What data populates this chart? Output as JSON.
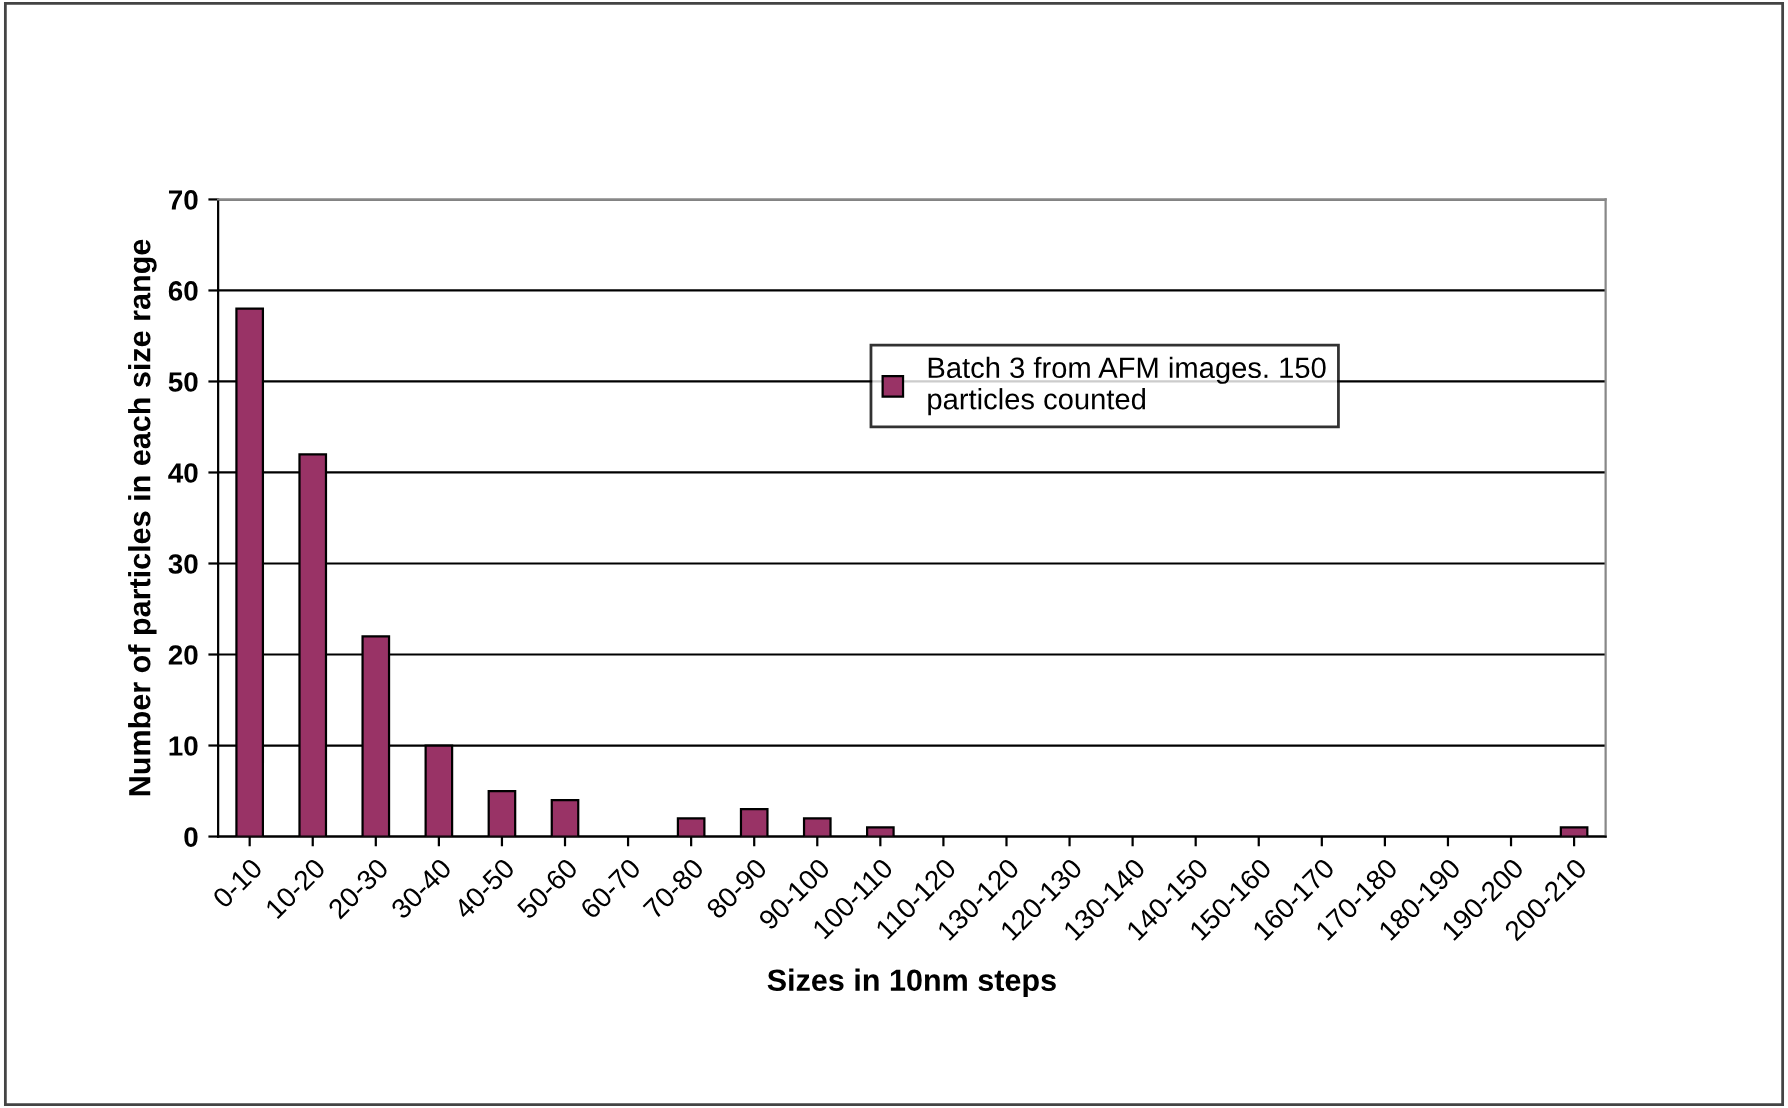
{
  "chart_data": {
    "type": "bar",
    "xlabel": "Sizes in 10nm steps",
    "ylabel": "Number of particles in each size range",
    "categories": [
      "0-10",
      "10-20",
      "20-30",
      "30-40",
      "40-50",
      "50-60",
      "60-70",
      "70-80",
      "80-90",
      "90-100",
      "100-110",
      "110-120",
      "130-120",
      "120-130",
      "130-140",
      "140-150",
      "150-160",
      "160-170",
      "170-180",
      "180-190",
      "190-200",
      "200-210"
    ],
    "series": [
      {
        "name": "Batch 3 from AFM images. 150 particles counted",
        "color": "#993366",
        "values": [
          58,
          42,
          22,
          10,
          5,
          4,
          0,
          2,
          3,
          2,
          1,
          0,
          0,
          0,
          0,
          0,
          0,
          0,
          0,
          0,
          0,
          1
        ]
      }
    ],
    "ylim": [
      0,
      70
    ],
    "yticks": [
      0,
      10,
      20,
      30,
      40,
      50,
      60,
      70
    ],
    "grid": "y",
    "legend": "top right"
  }
}
